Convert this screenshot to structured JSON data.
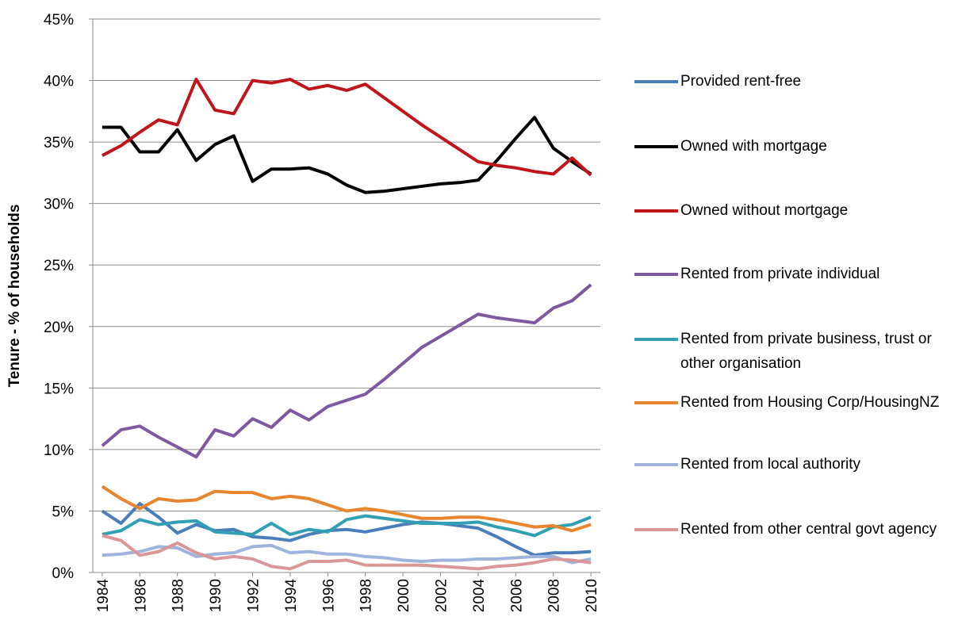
{
  "chart_data": {
    "type": "line",
    "y_label": "Tenure - % of households",
    "x": [
      1984,
      1985,
      1986,
      1987,
      1988,
      1989,
      1990,
      1991,
      1992,
      1993,
      1994,
      1995,
      1996,
      1997,
      1998,
      1999,
      2000,
      2001,
      2002,
      2003,
      2004,
      2005,
      2006,
      2007,
      2008,
      2009,
      2010
    ],
    "xlim": [
      1983.5,
      2010.5
    ],
    "xticks": [
      1984,
      1986,
      1988,
      1990,
      1992,
      1994,
      1996,
      1998,
      2000,
      2002,
      2004,
      2006,
      2008,
      2010
    ],
    "ylim": [
      0,
      45
    ],
    "yticks": [
      {
        "value": 0,
        "label": "0%"
      },
      {
        "value": 5,
        "label": "5%"
      },
      {
        "value": 10,
        "label": "10%"
      },
      {
        "value": 15,
        "label": "15%"
      },
      {
        "value": 20,
        "label": "20%"
      },
      {
        "value": 25,
        "label": "25%"
      },
      {
        "value": 30,
        "label": "30%"
      },
      {
        "value": 35,
        "label": "35%"
      },
      {
        "value": 40,
        "label": "40%"
      },
      {
        "value": 45,
        "label": "45%"
      }
    ],
    "grid": true,
    "legend": "right",
    "series": [
      {
        "name": "Provided rent-free",
        "color": "#4a7ebb",
        "values": [
          5.0,
          4.0,
          5.6,
          4.5,
          3.2,
          3.9,
          3.4,
          3.5,
          2.9,
          2.8,
          2.6,
          3.1,
          3.4,
          3.5,
          3.3,
          3.6,
          3.9,
          4.1,
          4.0,
          3.8,
          3.6,
          2.9,
          2.1,
          1.4,
          1.6,
          1.6,
          1.7
        ]
      },
      {
        "name": "Owned with mortgage",
        "color": "#000000",
        "values": [
          36.2,
          36.2,
          34.2,
          34.2,
          36.0,
          33.5,
          34.8,
          35.5,
          31.8,
          32.8,
          32.8,
          32.9,
          32.4,
          31.5,
          30.9,
          31.0,
          31.2,
          31.4,
          31.6,
          31.7,
          31.9,
          33.5,
          35.3,
          37.0,
          34.5,
          33.4,
          32.4
        ]
      },
      {
        "name": "Owned without mortgage",
        "color": "#c0161b",
        "values": [
          33.9,
          34.7,
          35.8,
          36.8,
          36.4,
          40.1,
          37.6,
          37.3,
          40.0,
          39.8,
          40.1,
          39.3,
          39.6,
          39.2,
          39.7,
          38.6,
          37.5,
          36.4,
          35.4,
          34.4,
          33.4,
          33.1,
          32.9,
          32.6,
          32.4,
          33.7,
          32.3
        ]
      },
      {
        "name": "Rented from private individual",
        "color": "#7d5aa0",
        "values": [
          10.3,
          11.6,
          11.9,
          11.0,
          10.2,
          9.4,
          11.6,
          11.1,
          12.5,
          11.8,
          13.2,
          12.4,
          13.5,
          14.0,
          14.5,
          15.7,
          17.0,
          18.3,
          19.2,
          20.1,
          21.0,
          20.7,
          20.5,
          20.3,
          21.5,
          22.1,
          23.4
        ]
      },
      {
        "name": "Rented from private business, trust or other organisation",
        "color": "#31a0b4",
        "values": [
          3.1,
          3.4,
          4.3,
          3.9,
          4.1,
          4.2,
          3.3,
          3.2,
          3.1,
          4.0,
          3.1,
          3.5,
          3.3,
          4.3,
          4.6,
          4.4,
          4.2,
          4.0,
          4.0,
          4.0,
          4.1,
          3.7,
          3.4,
          3.0,
          3.7,
          3.9,
          4.5
        ]
      },
      {
        "name": "Rented from Housing Corp/HousingNZ",
        "color": "#e8862f",
        "values": [
          7.0,
          6.0,
          5.2,
          6.0,
          5.8,
          5.9,
          6.6,
          6.5,
          6.5,
          6.0,
          6.2,
          6.0,
          5.5,
          5.0,
          5.2,
          5.0,
          4.7,
          4.4,
          4.4,
          4.5,
          4.5,
          4.3,
          4.0,
          3.7,
          3.8,
          3.4,
          3.9
        ]
      },
      {
        "name": "Rented from local authority",
        "color": "#9fb4dd",
        "values": [
          1.4,
          1.5,
          1.7,
          2.1,
          2.0,
          1.3,
          1.5,
          1.6,
          2.1,
          2.2,
          1.6,
          1.7,
          1.5,
          1.5,
          1.3,
          1.2,
          1.0,
          0.9,
          1.0,
          1.0,
          1.1,
          1.1,
          1.2,
          1.3,
          1.3,
          0.8,
          1.1
        ]
      },
      {
        "name": "Rented from other central govt agency",
        "color": "#d9979a",
        "values": [
          3.0,
          2.6,
          1.4,
          1.7,
          2.4,
          1.6,
          1.1,
          1.3,
          1.1,
          0.5,
          0.3,
          0.9,
          0.9,
          1.0,
          0.6,
          0.6,
          0.6,
          0.6,
          0.5,
          0.4,
          0.3,
          0.5,
          0.6,
          0.8,
          1.1,
          1.0,
          0.8
        ]
      }
    ]
  }
}
